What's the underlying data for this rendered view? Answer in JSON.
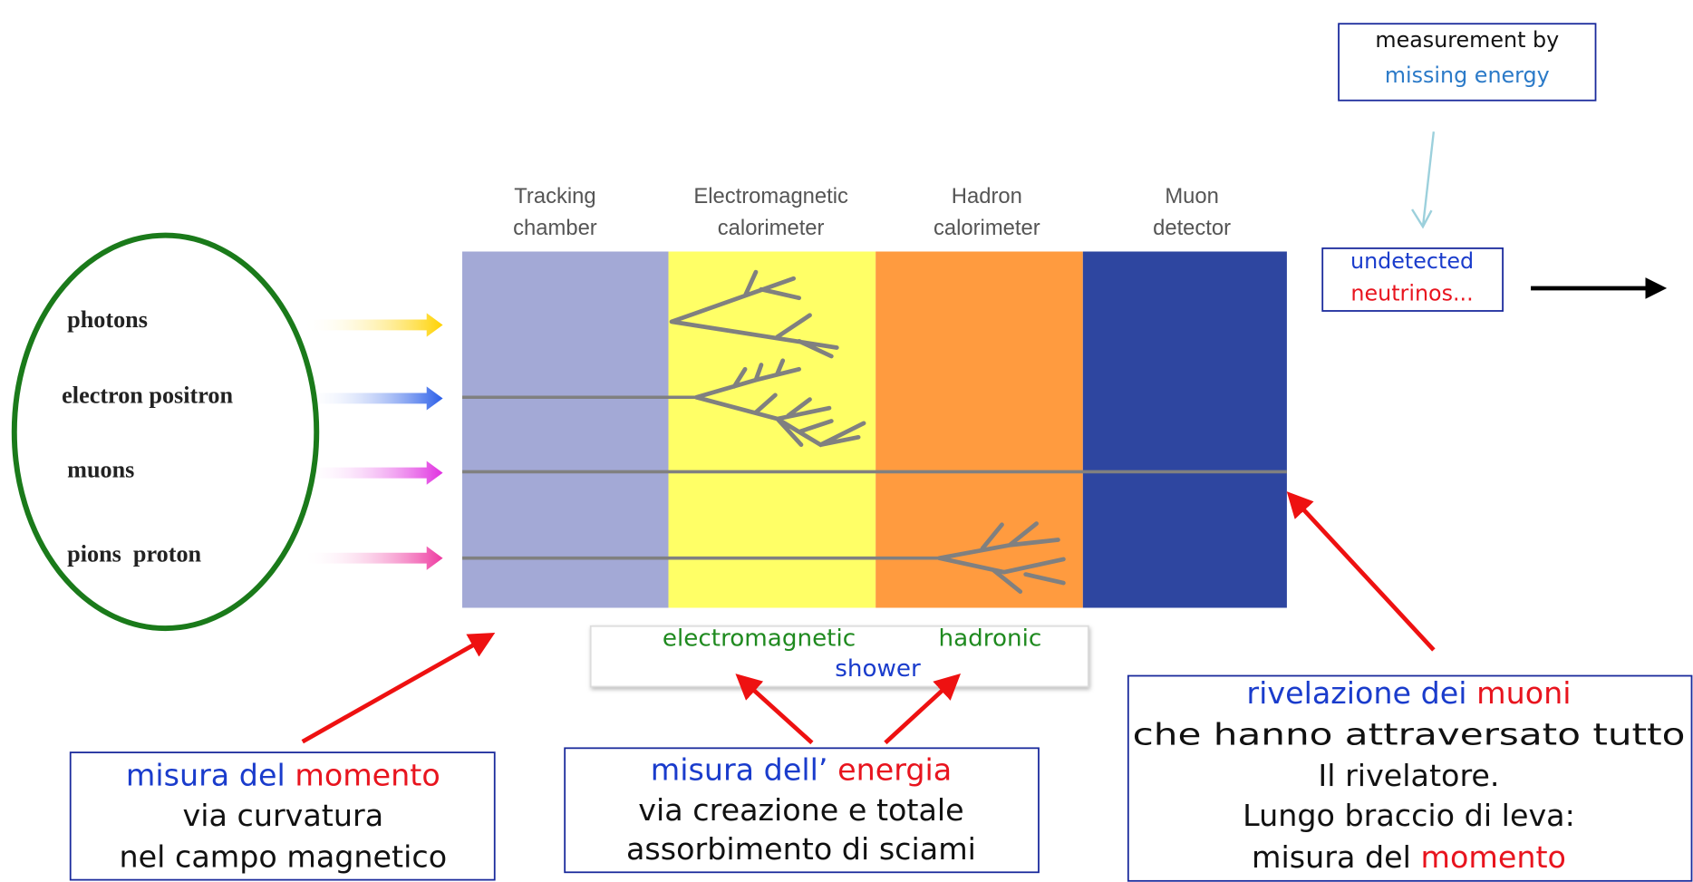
{
  "missing_energy_box": {
    "line1": "measurement by",
    "line2": "missing energy"
  },
  "layers": [
    {
      "line1": "Tracking",
      "line2": "chamber"
    },
    {
      "line1": "Electromagnetic",
      "line2": "calorimeter"
    },
    {
      "line1": "Hadron",
      "line2": "calorimeter"
    },
    {
      "line1": "Muon",
      "line2": "detector"
    }
  ],
  "particles": [
    "photons",
    "electron positron",
    "muons",
    "pions  proton"
  ],
  "neutrino_box": {
    "line1": "undetected",
    "line2": "neutrinos..."
  },
  "shower_box": {
    "left": "electromagnetic",
    "right": "hadronic",
    "bottom": "shower"
  },
  "notes": [
    {
      "lines": [
        [
          "misura del",
          "momento"
        ],
        [
          "via curvatura"
        ],
        [
          "nel campo magnetico"
        ]
      ]
    },
    {
      "lines": [
        [
          "misura dell’",
          "energia"
        ],
        [
          "via creazione e totale"
        ],
        [
          "assorbimento di sciami"
        ]
      ]
    },
    {
      "lines": [
        [
          "rivelazione dei",
          "muoni"
        ],
        [
          "che hanno attraversato tutto"
        ],
        [
          "Il rivelatore."
        ],
        [
          "Lungo braccio di leva:"
        ],
        [
          "misura del",
          "momento"
        ]
      ]
    }
  ]
}
